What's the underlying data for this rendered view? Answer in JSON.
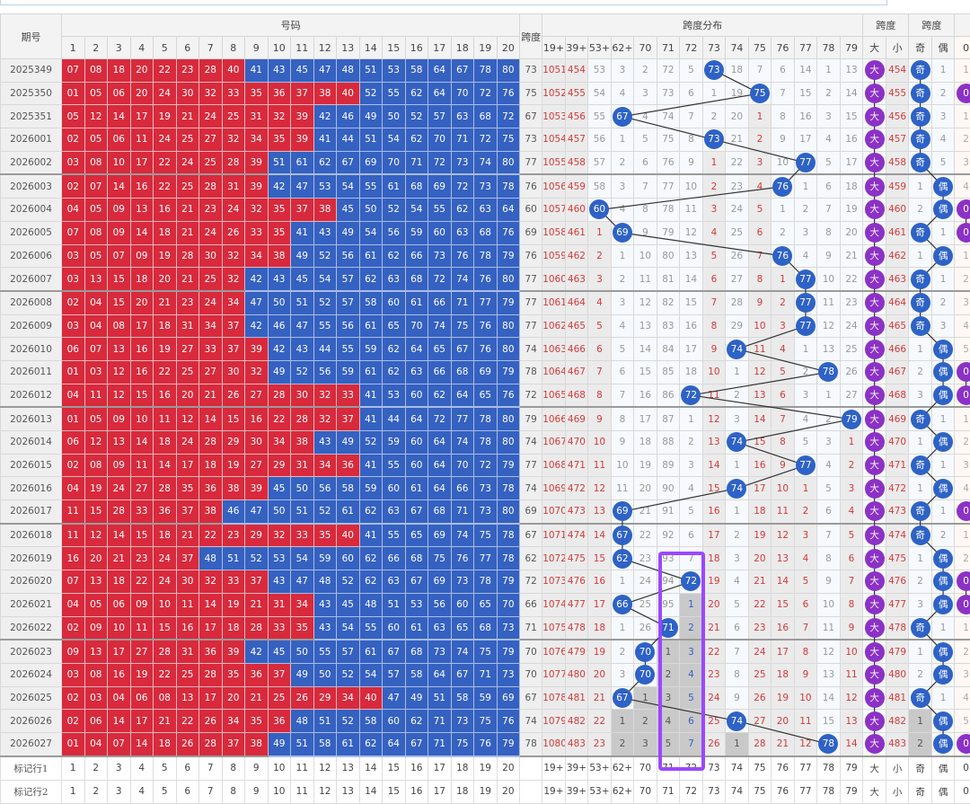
{
  "header": {
    "issue": "期号",
    "numbers_group": "号码",
    "span": "跨度",
    "distribution_group": "跨度分布",
    "size_group": "跨度",
    "parity_group": "跨度"
  },
  "number_cols": [
    "1",
    "2",
    "3",
    "4",
    "5",
    "6",
    "7",
    "8",
    "9",
    "10",
    "11",
    "12",
    "13",
    "14",
    "15",
    "16",
    "17",
    "18",
    "19",
    "20"
  ],
  "dist_cols": [
    "19+",
    "39+",
    "53+",
    "62+",
    "70",
    "71",
    "72",
    "73",
    "74",
    "75",
    "76",
    "77",
    "78",
    "79"
  ],
  "dist_ranges": [
    [
      19,
      38
    ],
    [
      39,
      52
    ],
    [
      53,
      61
    ],
    [
      62,
      69
    ],
    [
      70,
      70
    ],
    [
      71,
      71
    ],
    [
      72,
      72
    ],
    [
      73,
      73
    ],
    [
      74,
      74
    ],
    [
      75,
      75
    ],
    [
      76,
      76
    ],
    [
      77,
      77
    ],
    [
      78,
      78
    ],
    [
      79,
      79
    ]
  ],
  "size_cols": [
    "大",
    "小"
  ],
  "parity_cols": [
    "奇",
    "偶"
  ],
  "mod_cols": [
    "0"
  ],
  "red_max": 40,
  "initial_omission": {
    "dist": [
      1050,
      453,
      52,
      2,
      1,
      71,
      4,
      0,
      17,
      6,
      5,
      13,
      0,
      12
    ],
    "size": [
      0,
      453
    ],
    "parity": [
      0,
      0
    ],
    "mod0": 0
  },
  "rows": [
    {
      "issue": "2025349",
      "nums": [
        7,
        8,
        18,
        20,
        22,
        23,
        28,
        40,
        41,
        43,
        45,
        47,
        48,
        51,
        53,
        58,
        64,
        67,
        78,
        80
      ],
      "span": 73
    },
    {
      "issue": "2025350",
      "nums": [
        1,
        5,
        6,
        20,
        24,
        30,
        32,
        33,
        35,
        36,
        37,
        38,
        40,
        52,
        55,
        62,
        64,
        70,
        72,
        76
      ],
      "span": 75
    },
    {
      "issue": "2025351",
      "nums": [
        5,
        12,
        14,
        17,
        19,
        21,
        24,
        25,
        31,
        32,
        39,
        42,
        46,
        49,
        50,
        52,
        57,
        63,
        68,
        72
      ],
      "span": 67
    },
    {
      "issue": "2026001",
      "nums": [
        2,
        5,
        6,
        11,
        24,
        25,
        27,
        32,
        34,
        35,
        39,
        41,
        44,
        51,
        54,
        62,
        70,
        71,
        72,
        75
      ],
      "span": 73
    },
    {
      "issue": "2026002",
      "nums": [
        3,
        8,
        10,
        17,
        22,
        24,
        25,
        28,
        39,
        51,
        61,
        62,
        67,
        69,
        70,
        71,
        72,
        73,
        74,
        80
      ],
      "span": 77
    },
    {
      "issue": "2026003",
      "nums": [
        2,
        7,
        14,
        16,
        22,
        25,
        28,
        31,
        39,
        42,
        47,
        53,
        54,
        55,
        61,
        68,
        69,
        72,
        73,
        78
      ],
      "span": 76
    },
    {
      "issue": "2026004",
      "nums": [
        4,
        5,
        9,
        13,
        16,
        21,
        23,
        24,
        32,
        35,
        37,
        38,
        45,
        50,
        52,
        54,
        55,
        62,
        63,
        64
      ],
      "span": 60
    },
    {
      "issue": "2026005",
      "nums": [
        7,
        8,
        9,
        14,
        18,
        21,
        24,
        26,
        33,
        35,
        41,
        43,
        49,
        54,
        56,
        59,
        60,
        63,
        68,
        76
      ],
      "span": 69
    },
    {
      "issue": "2026006",
      "nums": [
        3,
        5,
        7,
        9,
        19,
        28,
        30,
        32,
        34,
        38,
        49,
        52,
        56,
        61,
        62,
        66,
        73,
        76,
        78,
        79
      ],
      "span": 76
    },
    {
      "issue": "2026007",
      "nums": [
        3,
        13,
        15,
        18,
        20,
        21,
        25,
        32,
        42,
        43,
        45,
        54,
        57,
        62,
        63,
        68,
        72,
        74,
        76,
        80
      ],
      "span": 77
    },
    {
      "issue": "2026008",
      "nums": [
        2,
        4,
        15,
        20,
        21,
        23,
        24,
        34,
        47,
        50,
        51,
        52,
        57,
        58,
        60,
        61,
        66,
        71,
        77,
        79
      ],
      "span": 77
    },
    {
      "issue": "2026009",
      "nums": [
        3,
        4,
        8,
        17,
        18,
        31,
        34,
        37,
        42,
        46,
        47,
        55,
        56,
        61,
        65,
        70,
        74,
        75,
        76,
        80
      ],
      "span": 77
    },
    {
      "issue": "2026010",
      "nums": [
        6,
        7,
        13,
        16,
        19,
        27,
        33,
        37,
        39,
        42,
        43,
        44,
        55,
        59,
        62,
        64,
        65,
        67,
        76,
        80
      ],
      "span": 74
    },
    {
      "issue": "2026011",
      "nums": [
        1,
        3,
        12,
        16,
        22,
        25,
        27,
        30,
        32,
        49,
        52,
        56,
        59,
        61,
        62,
        63,
        66,
        68,
        69,
        79
      ],
      "span": 78
    },
    {
      "issue": "2026012",
      "nums": [
        4,
        11,
        12,
        15,
        16,
        20,
        21,
        26,
        27,
        28,
        30,
        32,
        33,
        41,
        53,
        60,
        62,
        64,
        65,
        76
      ],
      "span": 72
    },
    {
      "issue": "2026013",
      "nums": [
        1,
        5,
        9,
        10,
        11,
        12,
        14,
        15,
        16,
        22,
        28,
        32,
        37,
        41,
        44,
        64,
        72,
        77,
        78,
        80
      ],
      "span": 79
    },
    {
      "issue": "2026014",
      "nums": [
        6,
        12,
        13,
        14,
        18,
        24,
        28,
        29,
        30,
        34,
        38,
        43,
        49,
        52,
        59,
        60,
        64,
        74,
        78,
        80
      ],
      "span": 74
    },
    {
      "issue": "2026015",
      "nums": [
        2,
        8,
        9,
        11,
        14,
        17,
        18,
        19,
        27,
        29,
        31,
        34,
        36,
        41,
        55,
        60,
        64,
        70,
        72,
        79
      ],
      "span": 77
    },
    {
      "issue": "2026016",
      "nums": [
        4,
        19,
        24,
        27,
        28,
        35,
        36,
        38,
        39,
        45,
        50,
        56,
        58,
        59,
        60,
        61,
        64,
        66,
        73,
        78
      ],
      "span": 74
    },
    {
      "issue": "2026017",
      "nums": [
        11,
        15,
        28,
        33,
        36,
        37,
        38,
        46,
        47,
        50,
        51,
        52,
        61,
        62,
        63,
        67,
        68,
        71,
        73,
        80
      ],
      "span": 69
    },
    {
      "issue": "2026018",
      "nums": [
        11,
        12,
        14,
        15,
        18,
        21,
        22,
        23,
        29,
        32,
        33,
        35,
        40,
        41,
        55,
        65,
        69,
        74,
        75,
        78
      ],
      "span": 67
    },
    {
      "issue": "2026019",
      "nums": [
        16,
        20,
        21,
        23,
        24,
        37,
        48,
        51,
        52,
        53,
        54,
        59,
        60,
        62,
        66,
        68,
        75,
        76,
        77,
        78
      ],
      "span": 62
    },
    {
      "issue": "2026020",
      "nums": [
        7,
        13,
        18,
        22,
        24,
        30,
        32,
        33,
        37,
        43,
        47,
        48,
        52,
        62,
        63,
        67,
        69,
        73,
        78,
        79
      ],
      "span": 72
    },
    {
      "issue": "2026021",
      "nums": [
        4,
        5,
        6,
        9,
        10,
        11,
        14,
        19,
        21,
        31,
        34,
        43,
        45,
        48,
        51,
        53,
        56,
        60,
        65,
        70
      ],
      "span": 66
    },
    {
      "issue": "2026022",
      "nums": [
        2,
        9,
        10,
        11,
        15,
        16,
        17,
        18,
        28,
        33,
        35,
        43,
        54,
        55,
        60,
        61,
        63,
        65,
        68,
        73
      ],
      "span": 71
    },
    {
      "issue": "2026023",
      "nums": [
        9,
        13,
        17,
        27,
        28,
        31,
        36,
        39,
        42,
        45,
        50,
        55,
        57,
        61,
        67,
        68,
        73,
        74,
        75,
        79
      ],
      "span": 70
    },
    {
      "issue": "2026024",
      "nums": [
        3,
        8,
        16,
        19,
        22,
        25,
        28,
        35,
        36,
        37,
        49,
        50,
        52,
        54,
        57,
        58,
        64,
        67,
        71,
        73
      ],
      "span": 70
    },
    {
      "issue": "2026025",
      "nums": [
        2,
        3,
        4,
        6,
        8,
        13,
        17,
        20,
        21,
        25,
        26,
        29,
        34,
        40,
        47,
        49,
        51,
        58,
        59,
        69
      ],
      "span": 67
    },
    {
      "issue": "2026026",
      "nums": [
        2,
        6,
        14,
        17,
        21,
        22,
        26,
        34,
        35,
        36,
        48,
        51,
        52,
        58,
        60,
        62,
        71,
        73,
        75,
        76
      ],
      "span": 74
    },
    {
      "issue": "2026027",
      "nums": [
        1,
        4,
        7,
        14,
        18,
        26,
        28,
        37,
        38,
        49,
        51,
        58,
        61,
        62,
        64,
        67,
        71,
        75,
        76,
        79
      ],
      "span": 78
    }
  ],
  "footer": [
    {
      "label": "标记行1"
    },
    {
      "label": "标记行2"
    }
  ],
  "colors": {
    "red_cell": "#d82a3c",
    "blue_cell": "#3561c1",
    "ball_blue": "#2e62c6",
    "ball_purple": "#8c31c6",
    "mark_box": "#9b47ff"
  }
}
